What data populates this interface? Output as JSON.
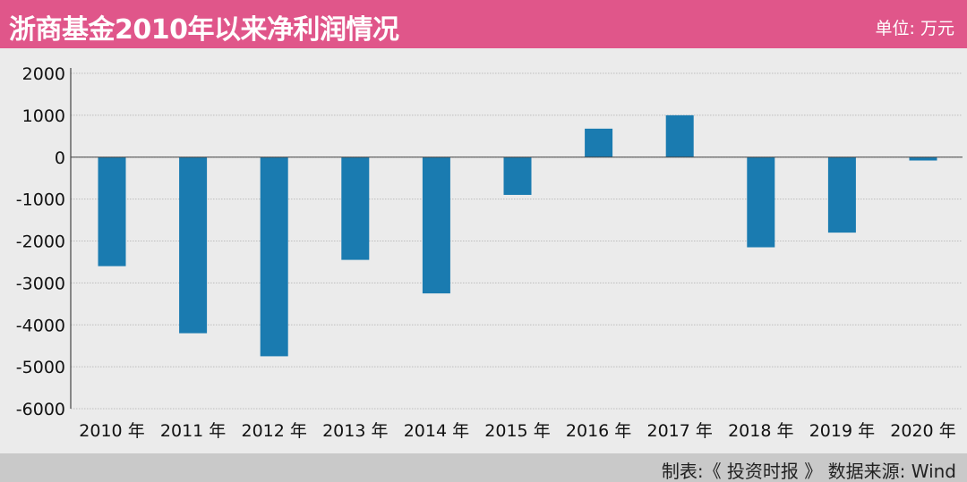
{
  "header": {
    "title": "浙商基金2010年以来净利润情况",
    "unit": "单位: 万元"
  },
  "footer": {
    "source": "制表:《 投资时报 》 数据来源: Wind"
  },
  "colors": {
    "header_bg": "#e0568a",
    "bar": "#1a7bb0",
    "background": "#ebebeb",
    "footer_bg": "#c9c9c9"
  },
  "chart_data": {
    "type": "bar",
    "categories": [
      "2010 年",
      "2011 年",
      "2012 年",
      "2013 年",
      "2014 年",
      "2015 年",
      "2016 年",
      "2017 年",
      "2018 年",
      "2019 年",
      "2020 年"
    ],
    "values": [
      -2600,
      -4200,
      -4750,
      -2450,
      -3250,
      -900,
      680,
      1000,
      -2150,
      -1800,
      -80
    ],
    "ylim": [
      -6000,
      2000
    ],
    "yticks": [
      "2000",
      "1000",
      "0",
      "-1000",
      "-2000",
      "-3000",
      "-4000",
      "-5000",
      "-6000"
    ],
    "grid": "horizontal",
    "title": "",
    "xlabel": "",
    "ylabel": ""
  }
}
